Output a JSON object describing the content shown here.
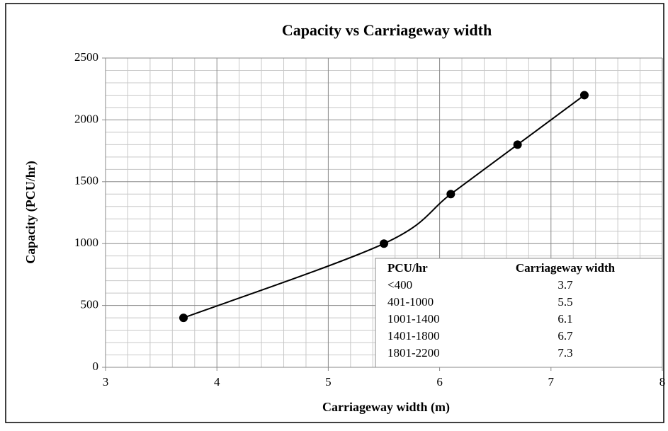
{
  "chart_data": {
    "type": "scatter",
    "title": "Capacity vs Carriageway width",
    "xlabel": "Carriageway width (m)",
    "ylabel": "Capacity (PCU/hr)",
    "series": [
      {
        "x": [
          3.7,
          5.5,
          6.1,
          6.7,
          7.3
        ],
        "values": [
          400,
          1000,
          1400,
          1800,
          2200
        ],
        "color": "#000000",
        "line": "smooth"
      }
    ],
    "xlim": [
      3,
      8
    ],
    "xticks": [
      3,
      4,
      5,
      6,
      7,
      8
    ],
    "ylim": [
      0,
      2500
    ],
    "yticks": [
      0,
      500,
      1000,
      1500,
      2000,
      2500
    ],
    "grid": true,
    "minor_grid": true,
    "table": {
      "columns": [
        "PCU/hr",
        "Carriageway width"
      ],
      "rows": [
        [
          "<400",
          3.7
        ],
        [
          "401-1000",
          5.5
        ],
        [
          "1001-1400",
          6.1
        ],
        [
          "1401-1800",
          6.7
        ],
        [
          "1801-2200",
          7.3
        ]
      ]
    }
  }
}
